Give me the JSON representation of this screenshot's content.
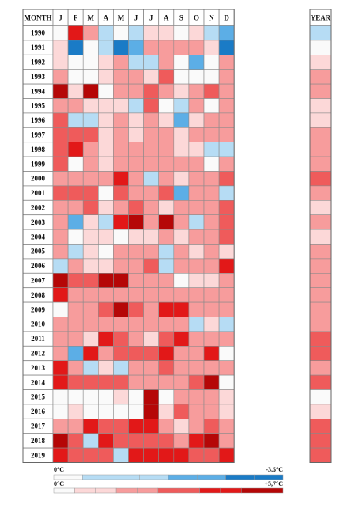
{
  "chart_data": {
    "type": "heatmap",
    "corner_label": "MONTH",
    "months": [
      "J",
      "F",
      "M",
      "A",
      "M",
      "J",
      "J",
      "A",
      "S",
      "O",
      "N",
      "D"
    ],
    "year_label": "YEAR",
    "years": [
      "1990",
      "1991",
      "1992",
      "1993",
      "1994",
      "1995",
      "1996",
      "1997",
      "1998",
      "1999",
      "2000",
      "2001",
      "2002",
      "2003",
      "2004",
      "2005",
      "2006",
      "2007",
      "2008",
      "2009",
      "2010",
      "2011",
      "2012",
      "2013",
      "2014",
      "2015",
      "2016",
      "2017",
      "2018",
      "2019"
    ],
    "units": "anomaly level (-3 = strong blue, 0 = white, +5 = darkest red)",
    "values": [
      [
        0,
        4,
        2,
        -1,
        0,
        -1,
        1,
        1,
        0,
        1,
        -1,
        -2
      ],
      [
        1,
        -3,
        0,
        -1,
        -3,
        -2,
        2,
        2,
        2,
        2,
        1,
        -3
      ],
      [
        1,
        0,
        0,
        1,
        2,
        -1,
        -1,
        2,
        0,
        -2,
        0,
        2
      ],
      [
        2,
        0,
        0,
        1,
        2,
        2,
        1,
        3,
        0,
        0,
        0,
        2
      ],
      [
        5,
        1,
        5,
        0,
        2,
        2,
        3,
        2,
        1,
        2,
        3,
        2
      ],
      [
        2,
        2,
        1,
        1,
        1,
        -1,
        3,
        0,
        -1,
        2,
        0,
        2
      ],
      [
        3,
        -1,
        -1,
        1,
        2,
        1,
        2,
        1,
        -2,
        1,
        2,
        2
      ],
      [
        3,
        3,
        3,
        1,
        2,
        1,
        2,
        2,
        1,
        2,
        2,
        2
      ],
      [
        3,
        4,
        2,
        1,
        2,
        2,
        2,
        2,
        1,
        1,
        -1,
        -1
      ],
      [
        3,
        0,
        2,
        1,
        2,
        2,
        2,
        2,
        2,
        2,
        0,
        2
      ],
      [
        2,
        2,
        2,
        2,
        4,
        2,
        -1,
        2,
        1,
        2,
        2,
        3
      ],
      [
        3,
        3,
        3,
        0,
        3,
        2,
        2,
        3,
        -2,
        2,
        2,
        -1
      ],
      [
        2,
        2,
        3,
        1,
        2,
        3,
        2,
        1,
        2,
        2,
        2,
        3
      ],
      [
        2,
        -2,
        1,
        -1,
        4,
        5,
        2,
        5,
        2,
        -1,
        2,
        3
      ],
      [
        2,
        0,
        1,
        1,
        0,
        1,
        1,
        2,
        1,
        2,
        2,
        3
      ],
      [
        2,
        -1,
        1,
        0,
        2,
        2,
        2,
        -1,
        2,
        1,
        2,
        1
      ],
      [
        -1,
        2,
        1,
        1,
        2,
        2,
        3,
        -1,
        2,
        2,
        2,
        4
      ],
      [
        5,
        3,
        3,
        5,
        5,
        2,
        2,
        2,
        0,
        1,
        1,
        2
      ],
      [
        4,
        2,
        2,
        2,
        2,
        2,
        2,
        2,
        2,
        2,
        2,
        2
      ],
      [
        0,
        2,
        2,
        3,
        5,
        3,
        2,
        4,
        4,
        2,
        2,
        2
      ],
      [
        2,
        2,
        2,
        2,
        2,
        2,
        2,
        2,
        2,
        -1,
        1,
        -1
      ],
      [
        2,
        2,
        1,
        4,
        3,
        2,
        1,
        3,
        4,
        2,
        2,
        2
      ],
      [
        2,
        -2,
        4,
        2,
        3,
        3,
        3,
        4,
        2,
        2,
        4,
        0
      ],
      [
        4,
        2,
        -1,
        1,
        -1,
        2,
        2,
        3,
        2,
        2,
        2,
        2
      ],
      [
        4,
        3,
        3,
        3,
        3,
        2,
        2,
        2,
        2,
        3,
        5,
        0
      ],
      [
        0,
        0,
        0,
        0,
        1,
        0,
        5,
        0,
        2,
        2,
        2,
        1
      ],
      [
        0,
        1,
        0,
        0,
        0,
        0,
        5,
        1,
        3,
        2,
        2,
        1
      ],
      [
        2,
        2,
        4,
        3,
        3,
        4,
        4,
        2,
        1,
        2,
        3,
        2
      ],
      [
        5,
        3,
        -1,
        4,
        3,
        3,
        3,
        3,
        2,
        4,
        5,
        2
      ],
      [
        4,
        3,
        3,
        3,
        -1,
        4,
        4,
        4,
        4,
        3,
        3,
        4
      ]
    ],
    "year_values": [
      -1,
      0,
      1,
      2,
      2,
      1,
      1,
      2,
      2,
      2,
      3,
      2,
      1,
      2,
      1,
      2,
      2,
      2,
      2,
      2,
      2,
      3,
      3,
      2,
      3,
      0,
      1,
      3,
      3,
      3
    ],
    "legend": [
      {
        "start_label": "0°C",
        "end_label": "-3,5°C",
        "levels": [
          0,
          -1,
          -1,
          -1,
          -2,
          -2,
          -3,
          -3
        ]
      },
      {
        "start_label": "0°C",
        "end_label": "+5,7°C",
        "levels": [
          0,
          1,
          1,
          2,
          2,
          3,
          3,
          4,
          4,
          5,
          5
        ]
      }
    ],
    "palette": {
      "-3": "#1a7bc6",
      "-2": "#5caee6",
      "-1": "#b6dcf4",
      "0": "#fafafa",
      "1": "#fcd8d8",
      "2": "#f79c9c",
      "3": "#ef5b5b",
      "4": "#e21818",
      "5": "#b50707"
    }
  }
}
